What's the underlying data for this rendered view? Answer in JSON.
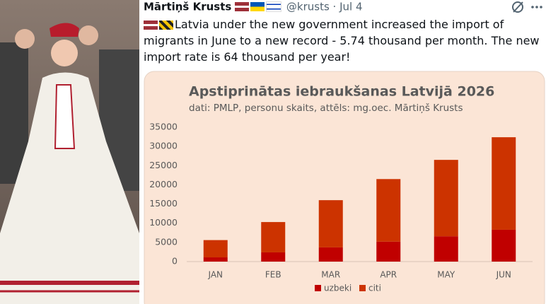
{
  "tweet": {
    "author": "Mārtiņš Krusts",
    "handle": "@krusts",
    "separator": "·",
    "date": "Jul 4",
    "text": "Latvia under the new government increased the import of migrants in June to a new record - 5.74 thousand per month. The new import rate is 64 thousand per year!"
  },
  "chart_data": {
    "type": "stacked_bar",
    "title": "Apstiprinātas iebraukšanas Latvijā 2026",
    "subtitle": "dati: PMLP, personu skaits, attēls: mg.oec. Mārtiņš Krusts",
    "categories": [
      "JAN",
      "FEB",
      "MAR",
      "APR",
      "MAY",
      "JUN"
    ],
    "series": [
      {
        "name": "uzbeki",
        "color": "#c00000",
        "values": [
          1100,
          2400,
          3700,
          5200,
          6600,
          8300
        ]
      },
      {
        "name": "citi",
        "color": "#cc3300",
        "values": [
          4500,
          7900,
          12300,
          16300,
          19900,
          24100
        ]
      }
    ],
    "ylim": [
      0,
      35000
    ],
    "yticks": [
      0,
      5000,
      10000,
      15000,
      20000,
      25000,
      30000,
      35000
    ],
    "grid": false,
    "legend": "bottom"
  }
}
